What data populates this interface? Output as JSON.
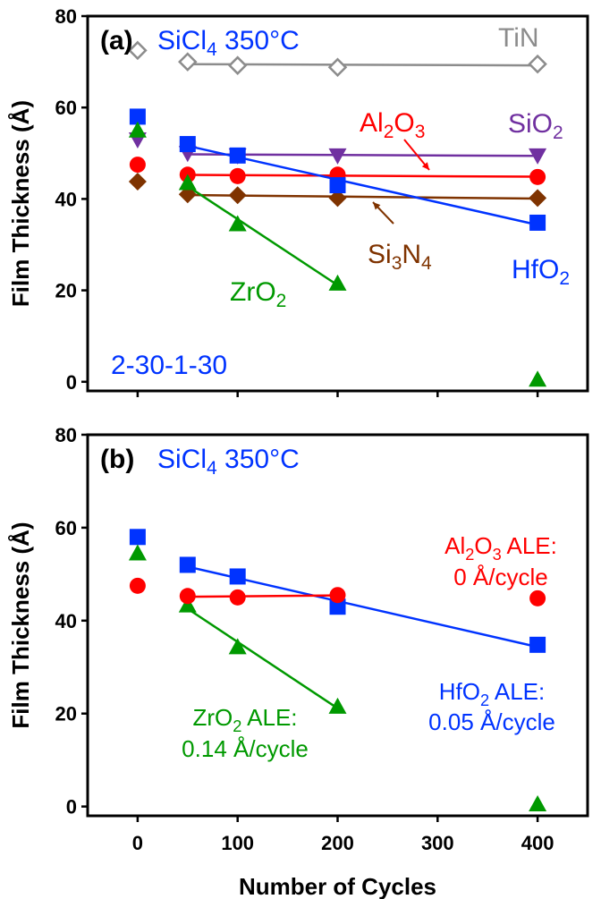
{
  "chart_data": [
    {
      "type": "scatter",
      "panel_label": "(a)",
      "title": "SiCl4 350°C",
      "title_parts": [
        "SiCl",
        "4",
        " 350°C"
      ],
      "subtitle": "2-30-1-30",
      "xlabel": "",
      "ylabel": "Film Thickness (Å)",
      "xlim": [
        -50,
        450
      ],
      "ylim": [
        -2,
        80
      ],
      "xticks": [
        0,
        100,
        200,
        300,
        400
      ],
      "yticks": [
        0,
        20,
        40,
        60,
        80
      ],
      "series": [
        {
          "name": "TiN",
          "name_parts": [
            "TiN"
          ],
          "color": "#8c8c8c",
          "marker": "diamond-open",
          "x": [
            0,
            50,
            100,
            200,
            400
          ],
          "y": [
            72.5,
            70.0,
            69.2,
            68.8,
            69.5
          ],
          "fit_from": 50
        },
        {
          "name": "SiO2",
          "name_parts": [
            "SiO",
            "2"
          ],
          "color": "#7030a0",
          "marker": "triangle-down",
          "x": [
            0,
            50,
            100,
            200,
            400
          ],
          "y": [
            53.0,
            50.0,
            49.5,
            49.5,
            49.5
          ],
          "fit_from": 50
        },
        {
          "name": "Al2O3",
          "name_parts": [
            "Al",
            "2",
            "O",
            "3"
          ],
          "color": "#ff0000",
          "marker": "circle",
          "x": [
            0,
            50,
            100,
            200,
            400
          ],
          "y": [
            47.5,
            45.3,
            45.0,
            45.3,
            44.8
          ],
          "fit_from": 50
        },
        {
          "name": "Si3N4",
          "name_parts": [
            "Si",
            "3",
            "N",
            "4"
          ],
          "color": "#7f3300",
          "marker": "diamond",
          "x": [
            0,
            50,
            100,
            200,
            400
          ],
          "y": [
            43.8,
            41.0,
            40.8,
            40.2,
            40.2
          ],
          "fit_from": 50
        },
        {
          "name": "HfO2",
          "name_parts": [
            "HfO",
            "2"
          ],
          "color": "#0033ff",
          "marker": "square",
          "x": [
            0,
            50,
            100,
            200,
            400
          ],
          "y": [
            58.0,
            52.0,
            49.5,
            43.0,
            34.8
          ],
          "fit_from": 50
        },
        {
          "name": "ZrO2",
          "name_parts": [
            "ZrO",
            "2"
          ],
          "color": "#009900",
          "marker": "triangle-up",
          "x": [
            0,
            50,
            100,
            200,
            400
          ],
          "y": [
            55.0,
            43.5,
            34.5,
            21.5,
            0.5
          ],
          "fit_from": 50,
          "fit_to": 200
        }
      ]
    },
    {
      "type": "scatter",
      "panel_label": "(b)",
      "title": "SiCl4 350°C",
      "title_parts": [
        "SiCl",
        "4",
        " 350°C"
      ],
      "xlabel": "Number of Cycles",
      "ylabel": "Film Thickness (Å)",
      "xlim": [
        -50,
        450
      ],
      "ylim": [
        -2,
        80
      ],
      "xticks": [
        0,
        100,
        200,
        300,
        400
      ],
      "yticks": [
        0,
        20,
        40,
        60,
        80
      ],
      "series": [
        {
          "name": "HfO2",
          "color": "#0033ff",
          "marker": "square",
          "x": [
            0,
            50,
            100,
            200,
            400
          ],
          "y": [
            58.0,
            52.0,
            49.5,
            43.0,
            34.8
          ],
          "fit_from": 50
        },
        {
          "name": "ZrO2",
          "color": "#009900",
          "marker": "triangle-up",
          "x": [
            0,
            50,
            100,
            200,
            400
          ],
          "y": [
            54.5,
            43.3,
            34.3,
            21.5,
            0.5
          ],
          "fit_from": 50,
          "fit_to": 200
        },
        {
          "name": "Al2O3",
          "color": "#ff0000",
          "marker": "circle",
          "x": [
            0,
            50,
            100,
            200
          ],
          "y": [
            47.5,
            45.3,
            45.0,
            45.5
          ],
          "fit_from": 50
        },
        {
          "name": "Al2O3",
          "color": "#ff0000",
          "marker": "circle",
          "x": [
            400
          ],
          "y": [
            44.8
          ]
        }
      ],
      "annotations": [
        {
          "line1_parts": [
            "Al",
            "2",
            "O",
            "3",
            " ALE:"
          ],
          "line2": "0 Å/cycle",
          "color": "#ff0000"
        },
        {
          "line1_parts": [
            "HfO",
            "2",
            " ALE:"
          ],
          "line2": "0.05 Å/cycle",
          "color": "#0033ff"
        },
        {
          "line1_parts": [
            "ZrO",
            "2",
            " ALE:"
          ],
          "line2": "0.14 Å/cycle",
          "color": "#009900"
        }
      ]
    }
  ]
}
